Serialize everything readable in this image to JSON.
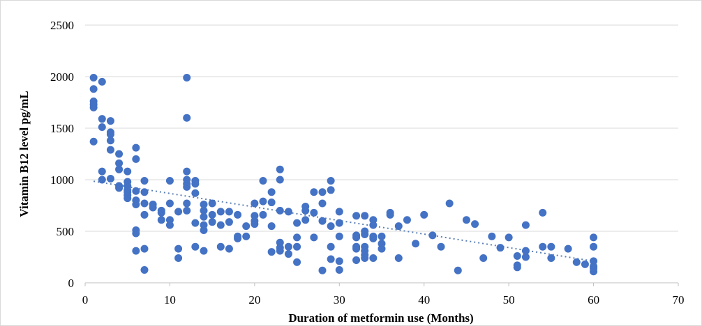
{
  "chart_data": {
    "type": "scatter",
    "title": "",
    "xlabel": "Duration of metformin use (Months)",
    "ylabel": "Vitamin B12 level pg/mL",
    "xlim": [
      0,
      70
    ],
    "ylim": [
      0,
      2500
    ],
    "xticks": [
      0,
      10,
      20,
      30,
      40,
      50,
      60,
      70
    ],
    "yticks": [
      0,
      500,
      1000,
      1500,
      2000,
      2500
    ],
    "xtick_labels": [
      "0",
      "10",
      "20",
      "30",
      "40",
      "50",
      "60",
      "70"
    ],
    "ytick_labels": [
      "0",
      "500",
      "1000",
      "1500",
      "2000",
      "2500"
    ],
    "grid": "horizontal",
    "legend": "none",
    "colors": {
      "points": "#4472c4",
      "trendline": "#5b7fb5",
      "grid": "#d9d9d9"
    },
    "trendline": {
      "style": "dotted",
      "x": [
        1,
        60
      ],
      "y": [
        985,
        210
      ]
    },
    "series": [
      {
        "points": [
          [
            1,
            1990
          ],
          [
            1,
            1880
          ],
          [
            1,
            1760
          ],
          [
            1,
            1730
          ],
          [
            1,
            1700
          ],
          [
            1,
            1370
          ],
          [
            2,
            1950
          ],
          [
            2,
            1590
          ],
          [
            2,
            1510
          ],
          [
            2,
            1080
          ],
          [
            2,
            1000
          ],
          [
            3,
            1570
          ],
          [
            3,
            1460
          ],
          [
            3,
            1440
          ],
          [
            3,
            1380
          ],
          [
            3,
            1290
          ],
          [
            3,
            1010
          ],
          [
            4,
            1250
          ],
          [
            4,
            1160
          ],
          [
            4,
            1100
          ],
          [
            4,
            940
          ],
          [
            4,
            920
          ],
          [
            5,
            1080
          ],
          [
            5,
            980
          ],
          [
            5,
            940
          ],
          [
            5,
            900
          ],
          [
            5,
            880
          ],
          [
            5,
            850
          ],
          [
            5,
            820
          ],
          [
            6,
            1310
          ],
          [
            6,
            1200
          ],
          [
            6,
            890
          ],
          [
            6,
            800
          ],
          [
            6,
            760
          ],
          [
            6,
            510
          ],
          [
            6,
            480
          ],
          [
            6,
            310
          ],
          [
            7,
            990
          ],
          [
            7,
            880
          ],
          [
            7,
            770
          ],
          [
            7,
            660
          ],
          [
            7,
            330
          ],
          [
            7,
            125
          ],
          [
            8,
            760
          ],
          [
            8,
            730
          ],
          [
            9,
            700
          ],
          [
            9,
            680
          ],
          [
            9,
            610
          ],
          [
            10,
            990
          ],
          [
            10,
            770
          ],
          [
            10,
            610
          ],
          [
            10,
            560
          ],
          [
            11,
            690
          ],
          [
            11,
            330
          ],
          [
            11,
            240
          ],
          [
            12,
            1990
          ],
          [
            12,
            1600
          ],
          [
            12,
            1080
          ],
          [
            12,
            1000
          ],
          [
            12,
            960
          ],
          [
            12,
            930
          ],
          [
            12,
            770
          ],
          [
            12,
            700
          ],
          [
            13,
            990
          ],
          [
            13,
            960
          ],
          [
            13,
            870
          ],
          [
            13,
            580
          ],
          [
            13,
            350
          ],
          [
            14,
            760
          ],
          [
            14,
            700
          ],
          [
            14,
            640
          ],
          [
            14,
            560
          ],
          [
            14,
            510
          ],
          [
            14,
            310
          ],
          [
            15,
            770
          ],
          [
            15,
            660
          ],
          [
            15,
            590
          ],
          [
            16,
            690
          ],
          [
            16,
            560
          ],
          [
            16,
            350
          ],
          [
            17,
            690
          ],
          [
            17,
            590
          ],
          [
            17,
            330
          ],
          [
            18,
            660
          ],
          [
            18,
            450
          ],
          [
            18,
            430
          ],
          [
            19,
            550
          ],
          [
            19,
            450
          ],
          [
            20,
            770
          ],
          [
            20,
            650
          ],
          [
            20,
            600
          ],
          [
            20,
            570
          ],
          [
            21,
            990
          ],
          [
            21,
            790
          ],
          [
            21,
            660
          ],
          [
            22,
            880
          ],
          [
            22,
            780
          ],
          [
            22,
            550
          ],
          [
            22,
            300
          ],
          [
            23,
            1100
          ],
          [
            23,
            1000
          ],
          [
            23,
            700
          ],
          [
            23,
            390
          ],
          [
            23,
            340
          ],
          [
            23,
            310
          ],
          [
            24,
            690
          ],
          [
            24,
            350
          ],
          [
            24,
            280
          ],
          [
            25,
            580
          ],
          [
            25,
            440
          ],
          [
            25,
            350
          ],
          [
            25,
            200
          ],
          [
            26,
            740
          ],
          [
            26,
            700
          ],
          [
            26,
            610
          ],
          [
            27,
            880
          ],
          [
            27,
            680
          ],
          [
            27,
            440
          ],
          [
            28,
            880
          ],
          [
            28,
            770
          ],
          [
            28,
            600
          ],
          [
            28,
            120
          ],
          [
            29,
            990
          ],
          [
            29,
            900
          ],
          [
            29,
            550
          ],
          [
            29,
            350
          ],
          [
            29,
            230
          ],
          [
            30,
            690
          ],
          [
            30,
            580
          ],
          [
            30,
            450
          ],
          [
            30,
            210
          ],
          [
            30,
            125
          ],
          [
            32,
            650
          ],
          [
            32,
            460
          ],
          [
            32,
            440
          ],
          [
            32,
            350
          ],
          [
            32,
            330
          ],
          [
            32,
            220
          ],
          [
            33,
            650
          ],
          [
            33,
            500
          ],
          [
            33,
            470
          ],
          [
            33,
            350
          ],
          [
            33,
            310
          ],
          [
            33,
            270
          ],
          [
            33,
            240
          ],
          [
            34,
            610
          ],
          [
            34,
            560
          ],
          [
            34,
            450
          ],
          [
            34,
            430
          ],
          [
            34,
            240
          ],
          [
            35,
            450
          ],
          [
            35,
            380
          ],
          [
            35,
            330
          ],
          [
            36,
            680
          ],
          [
            36,
            660
          ],
          [
            37,
            550
          ],
          [
            37,
            240
          ],
          [
            38,
            610
          ],
          [
            39,
            380
          ],
          [
            40,
            660
          ],
          [
            41,
            460
          ],
          [
            42,
            350
          ],
          [
            43,
            770
          ],
          [
            44,
            120
          ],
          [
            45,
            610
          ],
          [
            46,
            570
          ],
          [
            47,
            240
          ],
          [
            48,
            450
          ],
          [
            49,
            340
          ],
          [
            50,
            440
          ],
          [
            51,
            260
          ],
          [
            51,
            170
          ],
          [
            51,
            150
          ],
          [
            52,
            560
          ],
          [
            52,
            310
          ],
          [
            52,
            250
          ],
          [
            54,
            680
          ],
          [
            54,
            350
          ],
          [
            55,
            350
          ],
          [
            55,
            240
          ],
          [
            57,
            330
          ],
          [
            58,
            200
          ],
          [
            59,
            180
          ],
          [
            60,
            440
          ],
          [
            60,
            350
          ],
          [
            60,
            210
          ],
          [
            60,
            160
          ],
          [
            60,
            140
          ],
          [
            60,
            110
          ]
        ]
      }
    ]
  }
}
